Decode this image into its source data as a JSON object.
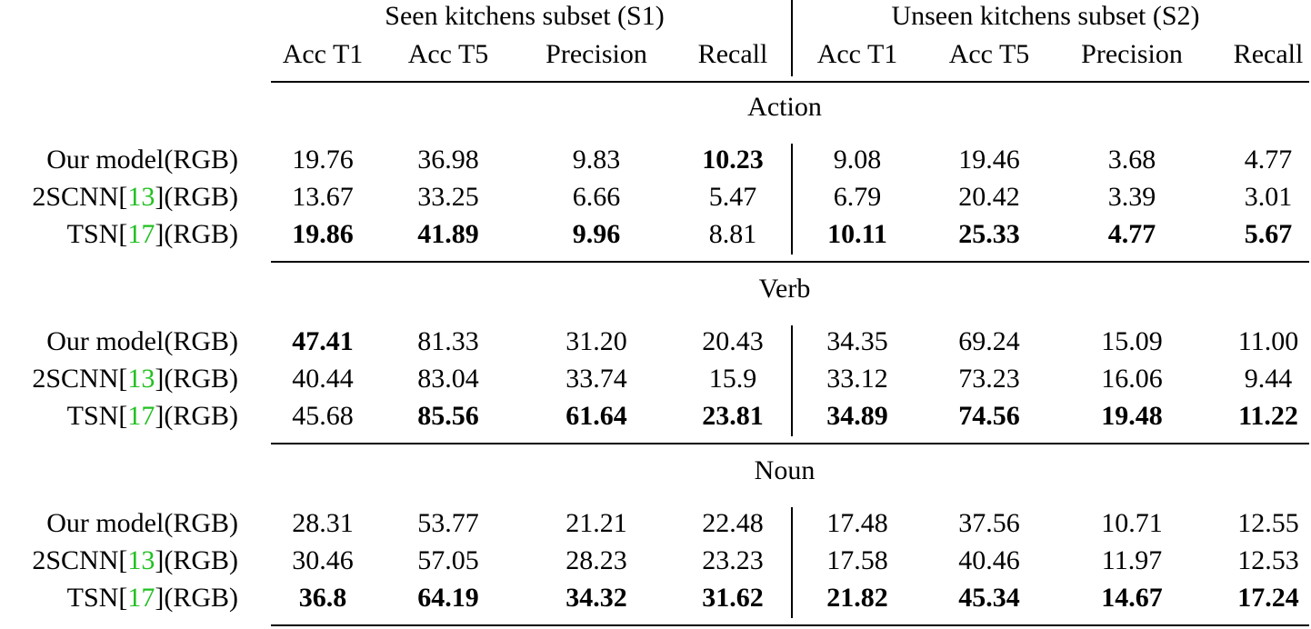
{
  "table": {
    "groups": [
      "Seen kitchens subset (S1)",
      "Unseen kitchens subset (S2)"
    ],
    "columns": [
      "Acc T1",
      "Acc T5",
      "Precision",
      "Recall",
      "Acc T1",
      "Acc T5",
      "Precision",
      "Recall"
    ],
    "sections": [
      {
        "title": "Action",
        "rows": [
          {
            "label": [
              "Our model(RGB)"
            ],
            "cells": [
              "19.76",
              "36.98",
              "9.83",
              "10.23",
              "9.08",
              "19.46",
              "3.68",
              "4.77"
            ],
            "bold": [
              3
            ]
          },
          {
            "label": [
              "2SCNN[",
              "13",
              "](RGB)"
            ],
            "cells": [
              "13.67",
              "33.25",
              "6.66",
              "5.47",
              "6.79",
              "20.42",
              "3.39",
              "3.01"
            ],
            "bold": []
          },
          {
            "label": [
              "TSN[",
              "17",
              "](RGB)"
            ],
            "cells": [
              "19.86",
              "41.89",
              "9.96",
              "8.81",
              "10.11",
              "25.33",
              "4.77",
              "5.67"
            ],
            "bold": [
              0,
              1,
              2,
              4,
              5,
              6,
              7
            ]
          }
        ]
      },
      {
        "title": "Verb",
        "rows": [
          {
            "label": [
              "Our model(RGB)"
            ],
            "cells": [
              "47.41",
              "81.33",
              "31.20",
              "20.43",
              "34.35",
              "69.24",
              "15.09",
              "11.00"
            ],
            "bold": [
              0
            ]
          },
          {
            "label": [
              "2SCNN[",
              "13",
              "](RGB)"
            ],
            "cells": [
              "40.44",
              "83.04",
              "33.74",
              "15.9",
              "33.12",
              "73.23",
              "16.06",
              "9.44"
            ],
            "bold": []
          },
          {
            "label": [
              "TSN[",
              "17",
              "](RGB)"
            ],
            "cells": [
              "45.68",
              "85.56",
              "61.64",
              "23.81",
              "34.89",
              "74.56",
              "19.48",
              "11.22"
            ],
            "bold": [
              1,
              2,
              3,
              4,
              5,
              6,
              7
            ]
          }
        ]
      },
      {
        "title": "Noun",
        "rows": [
          {
            "label": [
              "Our model(RGB)"
            ],
            "cells": [
              "28.31",
              "53.77",
              "21.21",
              "22.48",
              "17.48",
              "37.56",
              "10.71",
              "12.55"
            ],
            "bold": []
          },
          {
            "label": [
              "2SCNN[",
              "13",
              "](RGB)"
            ],
            "cells": [
              "30.46",
              "57.05",
              "28.23",
              "23.23",
              "17.58",
              "40.46",
              "11.97",
              "12.53"
            ],
            "bold": []
          },
          {
            "label": [
              "TSN[",
              "17",
              "](RGB)"
            ],
            "cells": [
              "36.8",
              "64.19",
              "34.32",
              "31.62",
              "21.82",
              "45.34",
              "14.67",
              "17.24"
            ],
            "bold": [
              0,
              1,
              2,
              3,
              4,
              5,
              6,
              7
            ]
          }
        ]
      }
    ]
  }
}
